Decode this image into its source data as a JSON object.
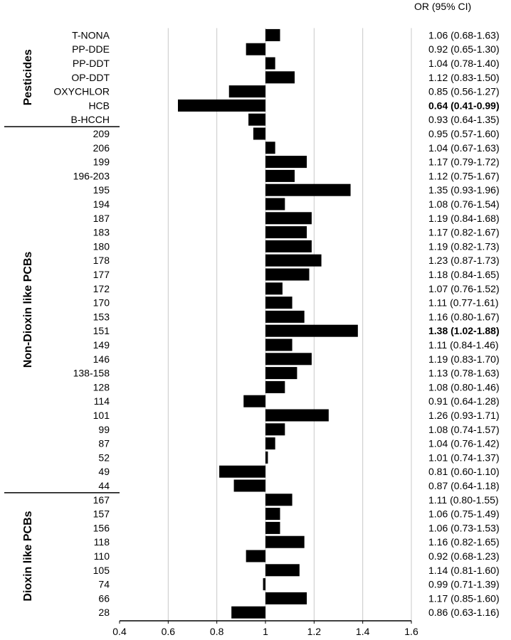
{
  "chart_data": {
    "type": "bar",
    "orientation": "horizontal",
    "baseline": 1,
    "xlim": [
      0.4,
      1.6
    ],
    "xticks": [
      "0.4",
      "0.6",
      "0.8",
      "1",
      "1.2",
      "1.4",
      "1.6"
    ],
    "grid": true,
    "ci_header": "OR (95% CI)",
    "groups": [
      {
        "name": "Pesticides",
        "rows": [
          {
            "label": "T-NONA",
            "value": 1.06,
            "ci": "1.06 (0.68-1.63)",
            "bold": false
          },
          {
            "label": "PP-DDE",
            "value": 0.92,
            "ci": "0.92 (0.65-1.30)",
            "bold": false
          },
          {
            "label": "PP-DDT",
            "value": 1.04,
            "ci": "1.04 (0.78-1.40)",
            "bold": false
          },
          {
            "label": "OP-DDT",
            "value": 1.12,
            "ci": "1.12 (0.83-1.50)",
            "bold": false
          },
          {
            "label": "OXYCHLOR",
            "value": 0.85,
            "ci": "0.85 (0.56-1.27)",
            "bold": false
          },
          {
            "label": "HCB",
            "value": 0.64,
            "ci": "0.64 (0.41-0.99)",
            "bold": true
          },
          {
            "label": "B-HCCH",
            "value": 0.93,
            "ci": "0.93 (0.64-1.35)",
            "bold": false
          }
        ]
      },
      {
        "name": "Non-Dioxin like PCBs",
        "rows": [
          {
            "label": "209",
            "value": 0.95,
            "ci": "0.95 (0.57-1.60)",
            "bold": false
          },
          {
            "label": "206",
            "value": 1.04,
            "ci": "1.04 (0.67-1.63)",
            "bold": false
          },
          {
            "label": "199",
            "value": 1.17,
            "ci": "1.17 (0.79-1.72)",
            "bold": false
          },
          {
            "label": "196-203",
            "value": 1.12,
            "ci": "1.12 (0.75-1.67)",
            "bold": false
          },
          {
            "label": "195",
            "value": 1.35,
            "ci": "1.35 (0.93-1.96)",
            "bold": false
          },
          {
            "label": "194",
            "value": 1.08,
            "ci": "1.08 (0.76-1.54)",
            "bold": false
          },
          {
            "label": "187",
            "value": 1.19,
            "ci": "1.19 (0.84-1.68)",
            "bold": false
          },
          {
            "label": "183",
            "value": 1.17,
            "ci": "1.17 (0.82-1.67)",
            "bold": false
          },
          {
            "label": "180",
            "value": 1.19,
            "ci": "1.19 (0.82-1.73)",
            "bold": false
          },
          {
            "label": "178",
            "value": 1.23,
            "ci": "1.23 (0.87-1.73)",
            "bold": false
          },
          {
            "label": "177",
            "value": 1.18,
            "ci": "1.18 (0.84-1.65)",
            "bold": false
          },
          {
            "label": "172",
            "value": 1.07,
            "ci": "1.07 (0.76-1.52)",
            "bold": false
          },
          {
            "label": "170",
            "value": 1.11,
            "ci": "1.11 (0.77-1.61)",
            "bold": false
          },
          {
            "label": "153",
            "value": 1.16,
            "ci": "1.16 (0.80-1.67)",
            "bold": false
          },
          {
            "label": "151",
            "value": 1.38,
            "ci": "1.38 (1.02-1.88)",
            "bold": true
          },
          {
            "label": "149",
            "value": 1.11,
            "ci": "1.11 (0.84-1.46)",
            "bold": false
          },
          {
            "label": "146",
            "value": 1.19,
            "ci": "1.19 (0.83-1.70)",
            "bold": false
          },
          {
            "label": "138-158",
            "value": 1.13,
            "ci": "1.13 (0.78-1.63)",
            "bold": false
          },
          {
            "label": "128",
            "value": 1.08,
            "ci": "1.08 (0.80-1.46)",
            "bold": false
          },
          {
            "label": "114",
            "value": 0.91,
            "ci": "0.91 (0.64-1.28)",
            "bold": false
          },
          {
            "label": "101",
            "value": 1.26,
            "ci": "1.26 (0.93-1.71)",
            "bold": false
          },
          {
            "label": "99",
            "value": 1.08,
            "ci": "1.08 (0.74-1.57)",
            "bold": false
          },
          {
            "label": "87",
            "value": 1.04,
            "ci": "1.04 (0.76-1.42)",
            "bold": false
          },
          {
            "label": "52",
            "value": 1.01,
            "ci": "1.01 (0.74-1.37)",
            "bold": false
          },
          {
            "label": "49",
            "value": 0.81,
            "ci": "0.81 (0.60-1.10)",
            "bold": false
          },
          {
            "label": "44",
            "value": 0.87,
            "ci": "0.87 (0.64-1.18)",
            "bold": false
          }
        ]
      },
      {
        "name": "Dioxin like PCBs",
        "rows": [
          {
            "label": "167",
            "value": 1.11,
            "ci": "1.11 (0.80-1.55)",
            "bold": false
          },
          {
            "label": "157",
            "value": 1.06,
            "ci": "1.06 (0.75-1.49)",
            "bold": false
          },
          {
            "label": "156",
            "value": 1.06,
            "ci": "1.06 (0.73-1.53)",
            "bold": false
          },
          {
            "label": "118",
            "value": 1.16,
            "ci": "1.16 (0.82-1.65)",
            "bold": false
          },
          {
            "label": "110",
            "value": 0.92,
            "ci": "0.92 (0.68-1.23)",
            "bold": false
          },
          {
            "label": "105",
            "value": 1.14,
            "ci": "1.14 (0.81-1.60)",
            "bold": false
          },
          {
            "label": "74",
            "value": 0.99,
            "ci": "0.99 (0.71-1.39)",
            "bold": false
          },
          {
            "label": "66",
            "value": 1.17,
            "ci": "1.17 (0.85-1.60)",
            "bold": false
          },
          {
            "label": "28",
            "value": 0.86,
            "ci": "0.86 (0.63-1.16)",
            "bold": false
          }
        ]
      }
    ],
    "colors": {
      "bar": "#000000",
      "grid": "#c8c8c8",
      "axis": "#000000"
    }
  }
}
